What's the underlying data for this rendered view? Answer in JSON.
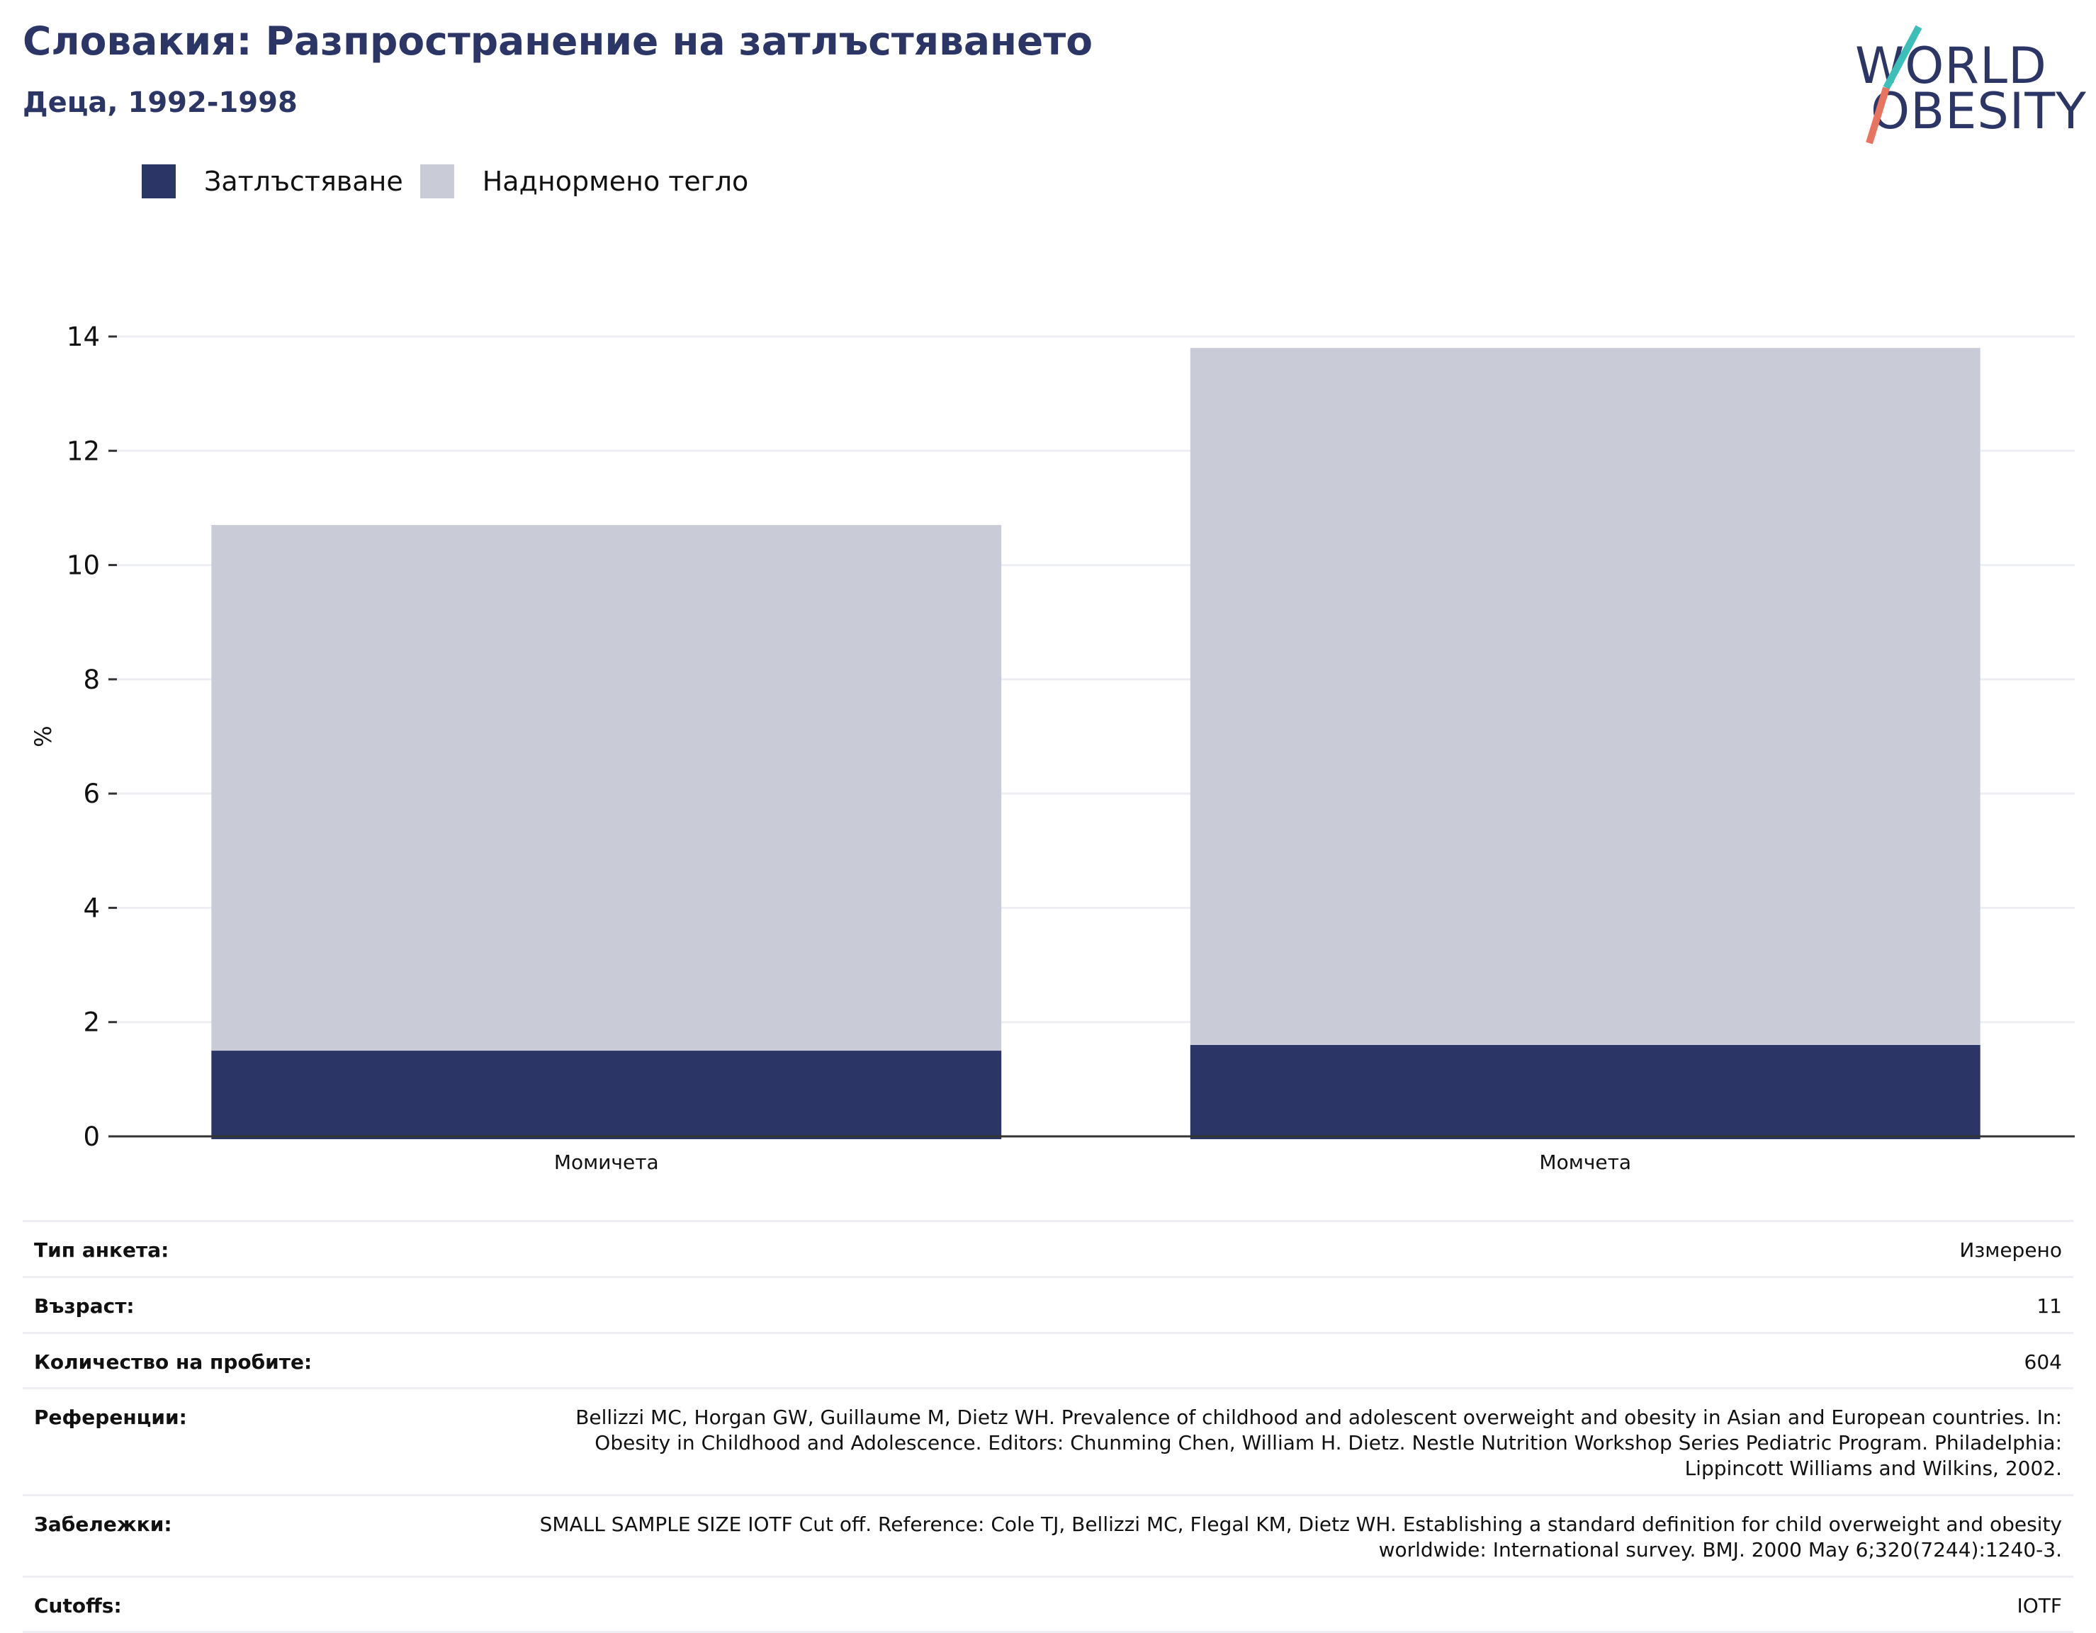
{
  "header": {
    "title": "Словакия: Разпространение на затлъстяването",
    "subtitle": "Деца, 1992-1998",
    "logo_line1": "WORLD",
    "logo_line2": "OBESITY"
  },
  "colors": {
    "obesity": "#2b3566",
    "overweight": "#c9cbd7",
    "title": "#2b3566",
    "grid": "#eceef3",
    "logo_teal": "#3bbfb8",
    "logo_coral": "#e8735f"
  },
  "chart_data": {
    "type": "bar",
    "stacked": true,
    "categories": [
      "Момичета",
      "Момчета"
    ],
    "series": [
      {
        "name": "Затлъстяване",
        "values": [
          1.5,
          1.6
        ],
        "color": "#2b3566"
      },
      {
        "name": "Наднормено тегло",
        "values": [
          9.2,
          12.2
        ],
        "color": "#c9cbd7"
      }
    ],
    "ylabel": "%",
    "xlabel": "",
    "ylim": [
      0,
      14
    ],
    "yticks": [
      0,
      2,
      4,
      6,
      8,
      10,
      12,
      14
    ],
    "grid": true,
    "legend_position": "top-left"
  },
  "meta": [
    {
      "label": "Тип анкета:",
      "value": "Измерено"
    },
    {
      "label": "Възраст:",
      "value": "11"
    },
    {
      "label": "Количество на пробите:",
      "value": "604"
    },
    {
      "label": "Референции:",
      "value": "Bellizzi MC, Horgan GW, Guillaume M, Dietz WH. Prevalence of childhood and adolescent overweight and obesity in Asian and European countries. In: Obesity in Childhood and Adolescence. Editors: Chunming Chen, William H. Dietz. Nestle Nutrition Workshop Series Pediatric Program. Philadelphia: Lippincott Williams and Wilkins, 2002."
    },
    {
      "label": "Забележки:",
      "value": "SMALL SAMPLE SIZE IOTF Cut off. Reference: Cole TJ, Bellizzi MC, Flegal KM, Dietz WH. Establishing a standard definition for child overweight and obesity worldwide: International survey. BMJ. 2000 May 6;320(7244):1240-3."
    },
    {
      "label": "Cutoffs:",
      "value": "IOTF"
    }
  ]
}
